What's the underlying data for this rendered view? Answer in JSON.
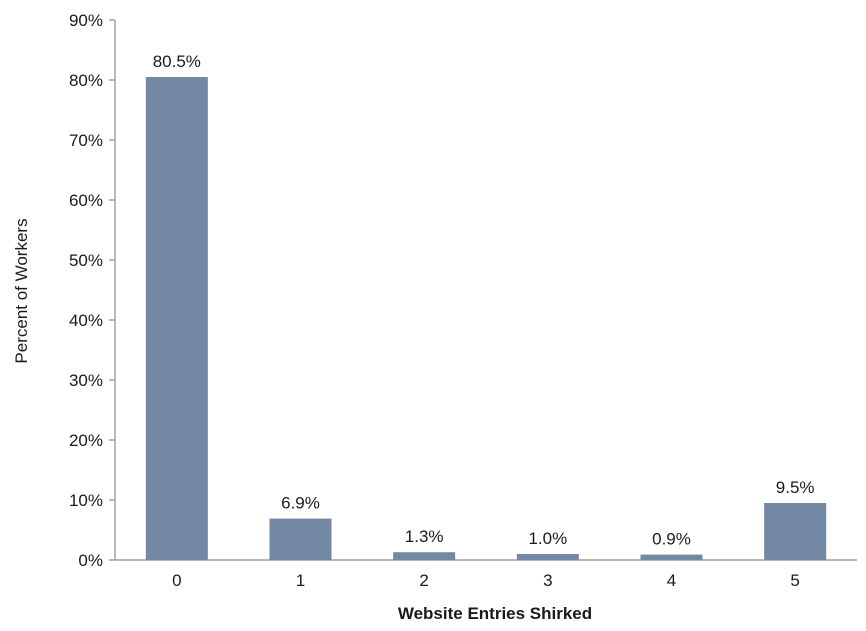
{
  "chart_data": {
    "type": "bar",
    "categories": [
      "0",
      "1",
      "2",
      "3",
      "4",
      "5"
    ],
    "values": [
      80.5,
      6.9,
      1.3,
      1.0,
      0.9,
      9.5
    ],
    "data_labels": [
      "80.5%",
      "6.9%",
      "1.3%",
      "1.0%",
      "0.9%",
      "9.5%"
    ],
    "title": "",
    "xlabel": "Website Entries Shirked",
    "ylabel": "Percent of Workers",
    "ylim": [
      0,
      90
    ],
    "yticks": [
      0,
      10,
      20,
      30,
      40,
      50,
      60,
      70,
      80,
      90
    ],
    "ytick_labels": [
      "0%",
      "10%",
      "20%",
      "30%",
      "40%",
      "50%",
      "60%",
      "70%",
      "80%",
      "90%"
    ],
    "grid": false,
    "legend": "none",
    "bar_color": "#7388a2",
    "axis_color": "#8c8c8c"
  }
}
